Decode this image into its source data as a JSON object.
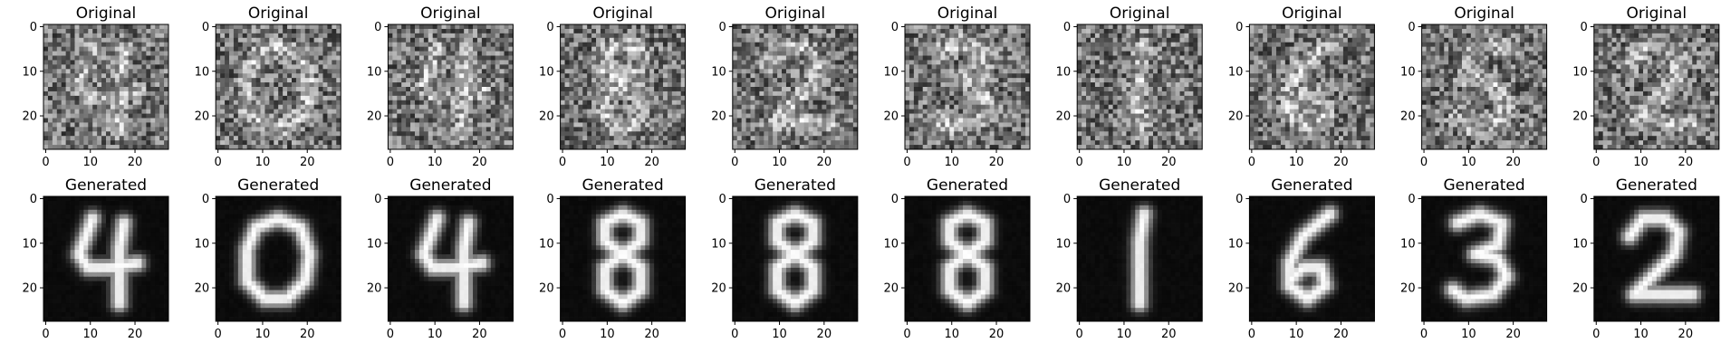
{
  "chart_data": {
    "type": "heatmap",
    "colormap": "gray",
    "grid": false,
    "rows": [
      {
        "panel_title": "Original",
        "style": "noisy",
        "digits": [
          "4",
          "0",
          "4",
          "8",
          "2",
          "3",
          "1",
          "6",
          "5",
          "2"
        ]
      },
      {
        "panel_title": "Generated",
        "style": "clean",
        "digits": [
          "4",
          "0",
          "4",
          "8",
          "8",
          "8",
          "1",
          "6",
          "3",
          "2"
        ]
      }
    ],
    "xlim": [
      0,
      28
    ],
    "ylim": [
      28,
      0
    ],
    "x_ticks": [
      0,
      10,
      20
    ],
    "y_ticks": [
      0,
      10,
      20
    ]
  }
}
